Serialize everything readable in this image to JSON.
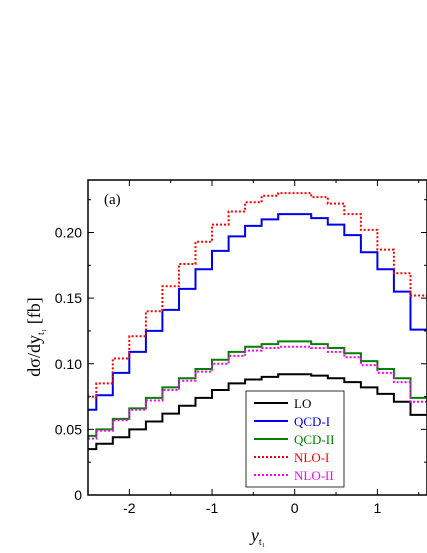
{
  "chart_data": {
    "type": "line",
    "panel_label": "(a)",
    "xlabel": "y",
    "xlabel_sub": "t₁",
    "ylabel": "dσ/dy",
    "ylabel_sub": "t₁",
    "ylabel_unit": " [fb]",
    "xlim": [
      -2.5,
      1.6
    ],
    "ylim": [
      0,
      0.24
    ],
    "xticks": [
      -2,
      -1,
      0,
      1
    ],
    "xtick_labels": [
      "-2",
      "-1",
      "0",
      "1"
    ],
    "yticks": [
      0,
      0.05,
      0.1,
      0.15,
      0.2
    ],
    "ytick_labels": [
      "0",
      "0.05",
      "0.10",
      "0.15",
      "0.20"
    ],
    "bin_width": 0.2,
    "bin_edges": [
      -2.5,
      -2.4,
      -2.2,
      -2.0,
      -1.8,
      -1.6,
      -1.4,
      -1.2,
      -1.0,
      -0.8,
      -0.6,
      -0.4,
      -0.2,
      0.0,
      0.2,
      0.4,
      0.6,
      0.8,
      1.0,
      1.2,
      1.4,
      1.6
    ],
    "legend_position": "bottom-right",
    "series": [
      {
        "name": "LO",
        "color": "#000000",
        "dash": "solid",
        "values": [
          0.035,
          0.039,
          0.044,
          0.05,
          0.056,
          0.062,
          0.068,
          0.074,
          0.08,
          0.085,
          0.088,
          0.09,
          0.092,
          0.092,
          0.091,
          0.089,
          0.086,
          0.082,
          0.077,
          0.071,
          0.061
        ]
      },
      {
        "name": "QCD-I",
        "color": "#0000ee",
        "dash": "solid",
        "values": [
          0.065,
          0.076,
          0.093,
          0.109,
          0.125,
          0.141,
          0.157,
          0.172,
          0.186,
          0.197,
          0.205,
          0.21,
          0.214,
          0.214,
          0.211,
          0.206,
          0.198,
          0.185,
          0.172,
          0.155,
          0.126
        ]
      },
      {
        "name": "QCD-II",
        "color": "#008000",
        "dash": "solid",
        "values": [
          0.045,
          0.05,
          0.058,
          0.066,
          0.074,
          0.082,
          0.089,
          0.096,
          0.103,
          0.109,
          0.113,
          0.115,
          0.117,
          0.117,
          0.115,
          0.112,
          0.108,
          0.102,
          0.096,
          0.089,
          0.074
        ]
      },
      {
        "name": "NLO-I",
        "color": "#ff0000",
        "dash": "dotted",
        "values": [
          0.075,
          0.085,
          0.104,
          0.121,
          0.14,
          0.159,
          0.176,
          0.193,
          0.206,
          0.216,
          0.223,
          0.228,
          0.23,
          0.23,
          0.227,
          0.222,
          0.214,
          0.202,
          0.187,
          0.169,
          0.152
        ]
      },
      {
        "name": "NLO-II",
        "color": "#ff00ff",
        "dash": "dotted",
        "values": [
          0.043,
          0.049,
          0.057,
          0.065,
          0.072,
          0.08,
          0.087,
          0.094,
          0.1,
          0.106,
          0.11,
          0.112,
          0.113,
          0.113,
          0.112,
          0.109,
          0.105,
          0.099,
          0.093,
          0.086,
          0.071
        ]
      }
    ]
  }
}
